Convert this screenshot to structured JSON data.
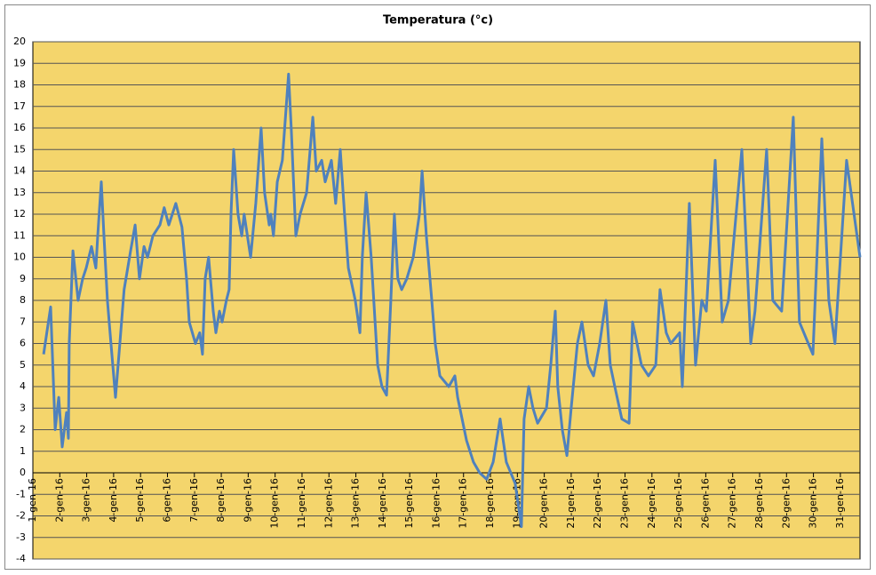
{
  "chart_data": {
    "type": "line",
    "title": "Temperatura (°c)",
    "x": [
      1.4,
      1.66,
      1.83,
      1.96,
      2.09,
      2.25,
      2.32,
      2.35,
      2.49,
      2.68,
      2.85,
      2.98,
      3.18,
      3.34,
      3.41,
      3.54,
      3.64,
      3.77,
      3.9,
      4.07,
      4.23,
      4.39,
      4.63,
      4.8,
      4.96,
      5.13,
      5.26,
      5.46,
      5.72,
      5.88,
      6.05,
      6.31,
      6.54,
      6.71,
      6.81,
      7.04,
      7.2,
      7.3,
      7.4,
      7.53,
      7.7,
      7.8,
      7.93,
      8.03,
      8.19,
      8.29,
      8.36,
      8.46,
      8.62,
      8.76,
      8.85,
      9.09,
      9.28,
      9.48,
      9.61,
      9.78,
      9.84,
      9.94,
      10.08,
      10.27,
      10.5,
      10.6,
      10.77,
      10.93,
      11.17,
      11.4,
      11.53,
      11.73,
      11.86,
      12.09,
      12.25,
      12.42,
      12.58,
      12.72,
      12.98,
      13.15,
      13.24,
      13.38,
      13.57,
      13.81,
      13.97,
      14.14,
      14.3,
      14.43,
      14.56,
      14.7,
      14.89,
      15.13,
      15.36,
      15.46,
      15.62,
      15.82,
      15.95,
      16.12,
      16.45,
      16.68,
      16.78,
      17.11,
      17.37,
      17.6,
      17.86,
      18.1,
      18.36,
      18.59,
      18.92,
      19.15,
      19.25,
      19.42,
      19.58,
      19.75,
      20.08,
      20.24,
      20.41,
      20.5,
      20.67,
      20.84,
      21.0,
      21.23,
      21.4,
      21.63,
      21.83,
      22.06,
      22.29,
      22.45,
      22.62,
      22.88,
      23.15,
      23.28,
      23.61,
      23.87,
      24.14,
      24.3,
      24.53,
      24.7,
      25.03,
      25.13,
      25.39,
      25.62,
      25.85,
      26.02,
      26.35,
      26.61,
      26.84,
      27.34,
      27.67,
      27.83,
      28.26,
      28.49,
      28.82,
      29.25,
      29.48,
      29.81,
      29.98,
      30.31,
      30.57,
      30.8,
      31.23,
      31.73
    ],
    "series": [
      {
        "color": "#4f81bd",
        "values": [
          5.5,
          7.7,
          2,
          3.5,
          1.2,
          2.8,
          1.6,
          6,
          10.3,
          8,
          9,
          9.5,
          10.5,
          9.5,
          11,
          13.5,
          11,
          8,
          6,
          3.5,
          6,
          8.5,
          10.3,
          11.5,
          9,
          10.5,
          10,
          11,
          11.5,
          12.3,
          11.5,
          12.5,
          11.4,
          9,
          7,
          6,
          6.5,
          5.5,
          9,
          10,
          7.5,
          6.5,
          7.5,
          7,
          8,
          8.5,
          12,
          15,
          12,
          11,
          12,
          10,
          12.5,
          16,
          13,
          11.5,
          12,
          11,
          13.5,
          14.5,
          18.5,
          16,
          11,
          12,
          13,
          16.5,
          14,
          14.5,
          13.5,
          14.5,
          12.5,
          15,
          12,
          9.5,
          8,
          6.5,
          10,
          13,
          10,
          5,
          4,
          3.6,
          8,
          12,
          9,
          8.5,
          9,
          10,
          12,
          14,
          11,
          8,
          6,
          4.5,
          4,
          4.5,
          3.5,
          1.5,
          0.5,
          0,
          -0.3,
          0.5,
          2.5,
          0.5,
          -0.5,
          -2.5,
          2.5,
          4,
          3,
          2.3,
          3,
          5,
          7.5,
          4,
          2,
          0.8,
          3,
          6,
          7,
          5,
          4.5,
          6,
          8,
          5,
          4,
          2.5,
          2.3,
          7,
          5,
          4.5,
          5,
          8.5,
          6.5,
          6,
          6.5,
          4,
          12.5,
          5,
          8,
          7.5,
          14.5,
          7,
          8,
          15,
          6,
          7.5,
          15,
          8,
          7.5,
          16.5,
          7,
          6,
          5.5,
          15.5,
          8,
          6,
          14.5,
          10
        ]
      }
    ],
    "xlim": [
      1,
      31.73
    ],
    "xticks": [
      {
        "value": 1,
        "label": "1-gen-16"
      },
      {
        "value": 2,
        "label": "2-gen-16"
      },
      {
        "value": 3,
        "label": "3-gen-16"
      },
      {
        "value": 4,
        "label": "4-gen-16"
      },
      {
        "value": 5,
        "label": "5-gen-16"
      },
      {
        "value": 6,
        "label": "6-gen-16"
      },
      {
        "value": 7,
        "label": "7-gen-16"
      },
      {
        "value": 8,
        "label": "8-gen-16"
      },
      {
        "value": 9,
        "label": "9-gen-16"
      },
      {
        "value": 10,
        "label": "10-gen-16"
      },
      {
        "value": 11,
        "label": "11-gen-16"
      },
      {
        "value": 12,
        "label": "12-gen-16"
      },
      {
        "value": 13,
        "label": "13-gen-16"
      },
      {
        "value": 14,
        "label": "14-gen-16"
      },
      {
        "value": 15,
        "label": "15-gen-16"
      },
      {
        "value": 16,
        "label": "16-gen-16"
      },
      {
        "value": 17,
        "label": "17-gen-16"
      },
      {
        "value": 18,
        "label": "18-gen-16"
      },
      {
        "value": 19,
        "label": "19-gen-16"
      },
      {
        "value": 20,
        "label": "20-gen-16"
      },
      {
        "value": 21,
        "label": "21-gen-16"
      },
      {
        "value": 22,
        "label": "22-gen-16"
      },
      {
        "value": 23,
        "label": "23-gen-16"
      },
      {
        "value": 24,
        "label": "24-gen-16"
      },
      {
        "value": 25,
        "label": "25-gen-16"
      },
      {
        "value": 26,
        "label": "26-gen-16"
      },
      {
        "value": 27,
        "label": "27-gen-16"
      },
      {
        "value": 28,
        "label": "28-gen-16"
      },
      {
        "value": 29,
        "label": "29-gen-16"
      },
      {
        "value": 30,
        "label": "30-gen-16"
      },
      {
        "value": 31,
        "label": "31-gen-16"
      }
    ],
    "ylim": [
      -4,
      20
    ],
    "yticks": [
      -4,
      -3,
      -2,
      -1,
      0,
      1,
      2,
      3,
      4,
      5,
      6,
      7,
      8,
      9,
      10,
      11,
      12,
      13,
      14,
      15,
      16,
      17,
      18,
      19,
      20
    ],
    "grid": true
  }
}
